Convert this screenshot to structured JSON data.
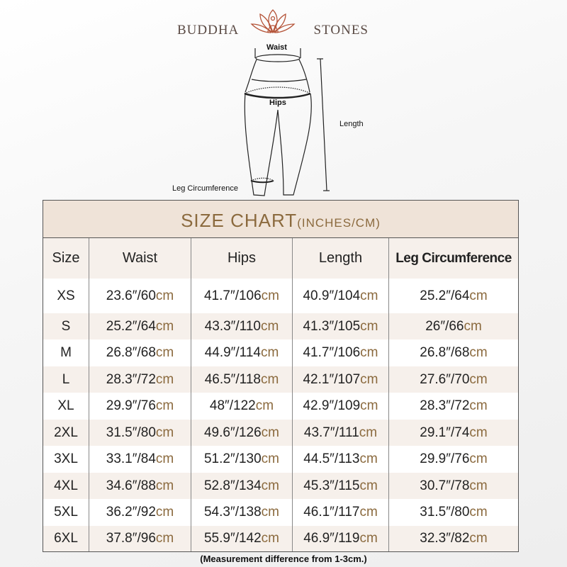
{
  "brand": {
    "left": "BUDDHA",
    "right": "STONES",
    "logo_color": "#b5553a"
  },
  "diagram": {
    "waist": "Waist",
    "hips": "Hips",
    "length": "Length",
    "leg": "Leg Circumference"
  },
  "table": {
    "title": "SIZE CHART",
    "units": "(INCHES/CM)",
    "headers": [
      "Size",
      "Waist",
      "Hips",
      "Length",
      "Leg Circumference"
    ],
    "rows": [
      {
        "size": "XS",
        "waist": [
          "23.6″/60",
          "cm"
        ],
        "hips": [
          "41.7″/106",
          "cm"
        ],
        "length": [
          "40.9″/104",
          "cm"
        ],
        "leg": [
          "25.2″/64",
          "cm"
        ]
      },
      {
        "size": "S",
        "waist": [
          "25.2″/64",
          "cm"
        ],
        "hips": [
          "43.3″/110",
          "cm"
        ],
        "length": [
          "41.3″/105",
          "cm"
        ],
        "leg": [
          "26″/66",
          "cm"
        ]
      },
      {
        "size": "M",
        "waist": [
          "26.8″/68",
          "cm"
        ],
        "hips": [
          "44.9″/114",
          "cm"
        ],
        "length": [
          "41.7″/106",
          "cm"
        ],
        "leg": [
          "26.8″/68",
          "cm"
        ]
      },
      {
        "size": "L",
        "waist": [
          "28.3″/72",
          "cm"
        ],
        "hips": [
          "46.5″/118",
          "cm"
        ],
        "length": [
          "42.1″/107",
          "cm"
        ],
        "leg": [
          "27.6″/70",
          "cm"
        ]
      },
      {
        "size": "XL",
        "waist": [
          "29.9″/76",
          "cm"
        ],
        "hips": [
          "48″/122",
          "cm"
        ],
        "length": [
          "42.9″/109",
          "cm"
        ],
        "leg": [
          "28.3″/72",
          "cm"
        ]
      },
      {
        "size": "2XL",
        "waist": [
          "31.5″/80",
          "cm"
        ],
        "hips": [
          "49.6″/126",
          "cm"
        ],
        "length": [
          "43.7″/111",
          "cm"
        ],
        "leg": [
          "29.1″/74",
          "cm"
        ]
      },
      {
        "size": "3XL",
        "waist": [
          "33.1″/84",
          "cm"
        ],
        "hips": [
          "51.2″/130",
          "cm"
        ],
        "length": [
          "44.5″/113",
          "cm"
        ],
        "leg": [
          "29.9″/76",
          "cm"
        ]
      },
      {
        "size": "4XL",
        "waist": [
          "34.6″/88",
          "cm"
        ],
        "hips": [
          "52.8″/134",
          "cm"
        ],
        "length": [
          "45.3″/115",
          "cm"
        ],
        "leg": [
          "30.7″/78",
          "cm"
        ]
      },
      {
        "size": "5XL",
        "waist": [
          "36.2″/92",
          "cm"
        ],
        "hips": [
          "54.3″/138",
          "cm"
        ],
        "length": [
          "46.1″/117",
          "cm"
        ],
        "leg": [
          "31.5″/80",
          "cm"
        ]
      },
      {
        "size": "6XL",
        "waist": [
          "37.8″/96",
          "cm"
        ],
        "hips": [
          "55.9″/142",
          "cm"
        ],
        "length": [
          "46.9″/119",
          "cm"
        ],
        "leg": [
          "32.3″/82",
          "cm"
        ]
      }
    ]
  },
  "note": "(Measurement difference from 1-3cm.)"
}
